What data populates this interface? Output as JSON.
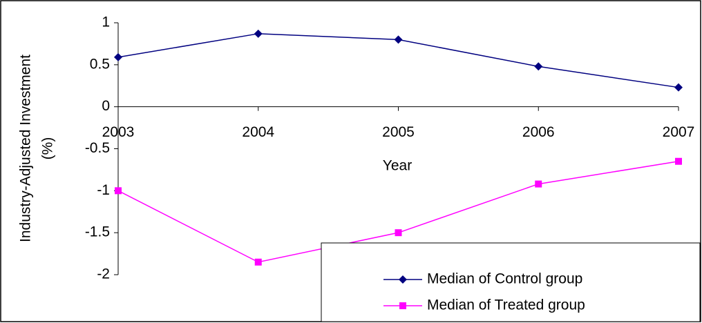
{
  "chart_data": {
    "type": "line",
    "ylabel": [
      "Industry-Adjusted Investment",
      "(%)"
    ],
    "xlabel": "Year",
    "categories": [
      "2003",
      "2004",
      "2005",
      "2006",
      "2007"
    ],
    "series": [
      {
        "name": "Median of Control group",
        "color": "#000080",
        "marker": "diamond",
        "values": [
          0.59,
          0.87,
          0.8,
          0.48,
          0.23
        ]
      },
      {
        "name": "Median of Treated group",
        "color": "#ff00ff",
        "marker": "square",
        "values": [
          -1.0,
          -1.85,
          -1.5,
          -0.92,
          -0.65
        ]
      }
    ],
    "ylim": [
      -2,
      1
    ],
    "yticks": [
      -2,
      -1.5,
      -1,
      -0.5,
      0,
      0.5,
      1
    ],
    "grid": false,
    "legend": "lower right"
  }
}
